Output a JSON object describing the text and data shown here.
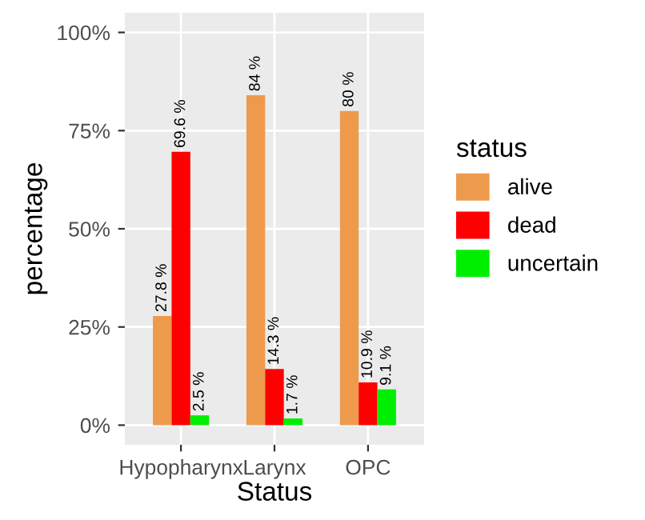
{
  "chart_data": {
    "type": "bar",
    "xlabel": "Status",
    "ylabel": "percentage",
    "legend_title": "status",
    "categories": [
      "Hypopharynx",
      "Larynx",
      "OPC"
    ],
    "series": [
      {
        "name": "alive",
        "color": "#ee9a4d",
        "values": [
          0.278,
          0.84,
          0.8
        ],
        "value_labels": [
          "27.8 %",
          "84 %",
          "80 %"
        ]
      },
      {
        "name": "dead",
        "color": "#ff0000",
        "values": [
          0.696,
          0.143,
          0.109
        ],
        "value_labels": [
          "69.6 %",
          "14.3 %",
          "10.9 %"
        ]
      },
      {
        "name": "uncertain",
        "color": "#00ee00",
        "values": [
          0.025,
          0.017,
          0.091
        ],
        "value_labels": [
          "2.5 %",
          "1.7 %",
          "9.1 %"
        ]
      }
    ],
    "ylim": [
      -0.05,
      1.05
    ],
    "yticks": [
      {
        "value": 0,
        "label": "0%"
      },
      {
        "value": 0.25,
        "label": "25%"
      },
      {
        "value": 0.5,
        "label": "50%"
      },
      {
        "value": 0.75,
        "label": "75%"
      },
      {
        "value": 1,
        "label": "100%"
      }
    ],
    "grid": true,
    "legend": "right"
  }
}
